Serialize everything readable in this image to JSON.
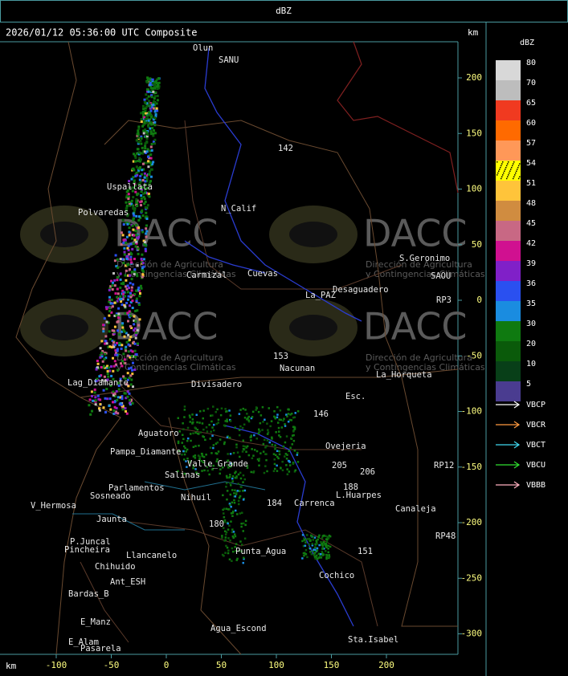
{
  "header": {
    "title": "dBZ",
    "timestamp": "2026/01/12 05:36:00 UTC Composite"
  },
  "map": {
    "x_axis_label": "km",
    "y_axis_label": "km",
    "xticks": [
      -100,
      -50,
      0,
      50,
      100,
      150,
      200
    ],
    "yticks": [
      200,
      150,
      100,
      50,
      0,
      -50,
      -100,
      -150,
      -200,
      -250,
      -300
    ],
    "places": [
      "Olun",
      "SANU",
      "Uspallata",
      "Polvaredas",
      "N_Calif",
      "S.Geronimo",
      "SAOU",
      "Desaguadero",
      "La_PAZ",
      "Cuevas",
      "Carmizal",
      "Nacunan",
      "La_Horqueta",
      "Divisadero",
      "Lag_Diamante",
      "Esc.",
      "Aguatoro",
      "Pampa_Diamante",
      "Ovejeria",
      "Valle_Grande",
      "Salinas",
      "Parlamentos",
      "Sosneado",
      "Nihuil",
      "L.Huarpes",
      "V_Hermosa",
      "Canaleja",
      "Carrenca",
      "Jaunta",
      "P.Juncal",
      "Pincheira",
      "Punta_Agua",
      "Llancanelo",
      "Chihuido",
      "Cochico",
      "Ant_ESH",
      "Bardas_B",
      "Agua_Escond",
      "E_Manz",
      "E_Alam",
      "Pasarela",
      "Sta.Isabel",
      "RP3",
      "RP12",
      "RP48",
      "142",
      "153",
      "146",
      "184",
      "180",
      "151",
      "206",
      "205",
      "188"
    ],
    "watermark": {
      "logo": "DACC",
      "line1": "Dirección de Agricultura",
      "line2": "y Contingencias Climáticas"
    }
  },
  "legend": {
    "title": "dBZ",
    "levels": [
      80,
      70,
      65,
      60,
      57,
      54,
      51,
      48,
      45,
      42,
      39,
      36,
      35,
      30,
      20,
      10,
      5
    ],
    "colors": [
      "#d8d8d8",
      "#bdbdbd",
      "#f03a20",
      "#ff6a00",
      "#ff9858",
      "#ffff00",
      "#ffc43a",
      "#d08c40",
      "#c86884",
      "#d01090",
      "#8020c8",
      "#2a50f0",
      "#1a8ce0",
      "#0f7a10",
      "#0a5a0a",
      "#083f18",
      "#4a3c90"
    ],
    "radars": [
      {
        "name": "VBCP",
        "color": "#ffffff"
      },
      {
        "name": "VBCR",
        "color": "#ff9a40"
      },
      {
        "name": "VBCT",
        "color": "#40d8f0"
      },
      {
        "name": "VBCU",
        "color": "#30e030"
      },
      {
        "name": "VBBB",
        "color": "#ffb0c0"
      }
    ]
  }
}
